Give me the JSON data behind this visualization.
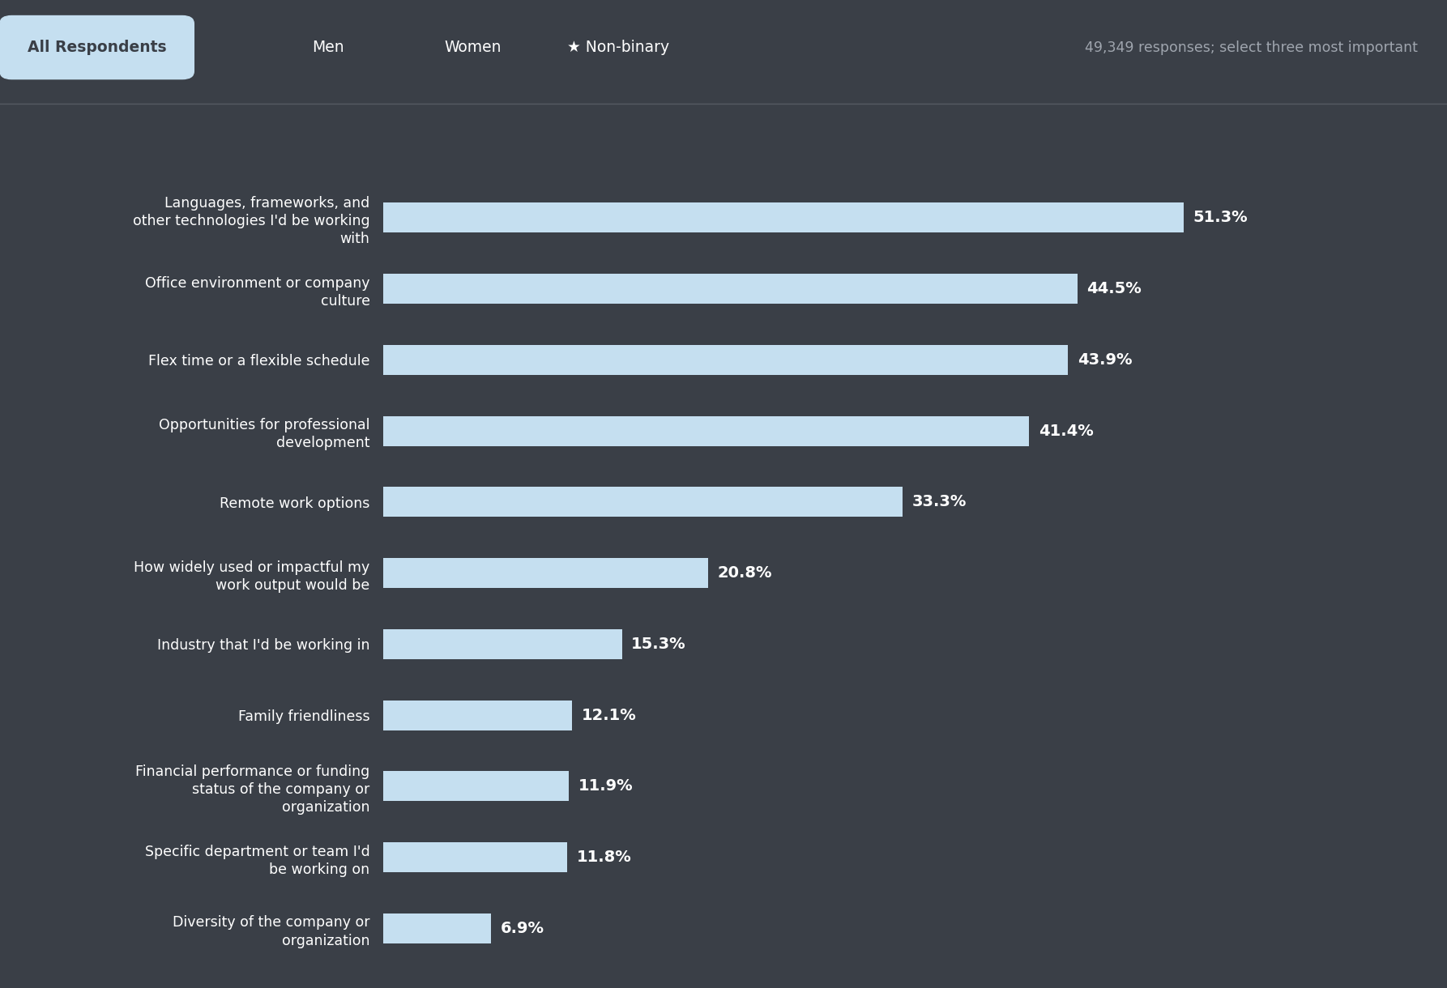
{
  "background_color": "#3a3f47",
  "bar_color": "#c5dff0",
  "text_color": "#ffffff",
  "header_bg": "#c5dff0",
  "categories": [
    "Languages, frameworks, and\nother technologies I'd be working\nwith",
    "Office environment or company\nculture",
    "Flex time or a flexible schedule",
    "Opportunities for professional\ndevelopment",
    "Remote work options",
    "How widely used or impactful my\nwork output would be",
    "Industry that I'd be working in",
    "Family friendliness",
    "Financial performance or funding\nstatus of the company or\norganization",
    "Specific department or team I'd\nbe working on",
    "Diversity of the company or\norganization"
  ],
  "values": [
    51.3,
    44.5,
    43.9,
    41.4,
    33.3,
    20.8,
    15.3,
    12.1,
    11.9,
    11.8,
    6.9
  ],
  "value_labels": [
    "51.3%",
    "44.5%",
    "43.9%",
    "41.4%",
    "33.3%",
    "20.8%",
    "15.3%",
    "12.1%",
    "11.9%",
    "11.8%",
    "6.9%"
  ],
  "xlim": [
    0,
    58
  ],
  "tab_labels": [
    "All Respondents",
    "Men",
    "Women",
    "★ Non-binary"
  ],
  "subtitle": "49,349 responses; select three most important",
  "figsize": [
    17.86,
    12.2
  ],
  "dpi": 100
}
